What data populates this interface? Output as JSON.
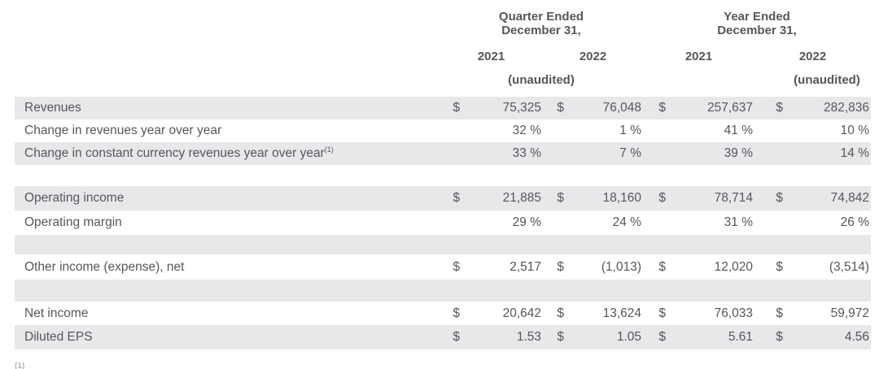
{
  "page": {
    "background_color": "#ffffff",
    "text_color": "#55575a",
    "shaded_row_color": "#e7e8ea"
  },
  "header": {
    "quarter_group": {
      "line1": "Quarter Ended",
      "line2": "December 31,",
      "year_left": "2021",
      "year_right": "2022",
      "unaudited": "(unaudited)"
    },
    "year_group": {
      "line1": "Year Ended",
      "line2": "December 31,",
      "year_left": "2021",
      "year_right": "2022",
      "unaudited": "(unaudited)"
    }
  },
  "rows": [
    {
      "label": "Revenues",
      "cells": [
        "$",
        "75,325",
        "$",
        "76,048",
        "$",
        "257,637",
        "$",
        "282,836"
      ]
    },
    {
      "label": "Change in revenues year over year",
      "cells": [
        "",
        "32 %",
        "",
        "1 %",
        "",
        "41 %",
        "",
        "10 %"
      ]
    },
    {
      "label": "Change in constant currency revenues year over year",
      "sup": "(1)",
      "cells": [
        "",
        "33 %",
        "",
        "7 %",
        "",
        "39 %",
        "",
        "14 %"
      ]
    },
    {
      "label": "Operating income",
      "cells": [
        "$",
        "21,885",
        "$",
        "18,160",
        "$",
        "78,714",
        "$",
        "74,842"
      ]
    },
    {
      "label": "Operating margin",
      "cells": [
        "",
        "29 %",
        "",
        "24 %",
        "",
        "31 %",
        "",
        "26 %"
      ]
    },
    {
      "label": "Other income (expense), net",
      "cells": [
        "$",
        "2,517",
        "$",
        "(1,013)",
        "$",
        "12,020",
        "$",
        "(3,514)"
      ]
    },
    {
      "label": "Net income",
      "cells": [
        "$",
        "20,642",
        "$",
        "13,624",
        "$",
        "76,033",
        "$",
        "59,972"
      ]
    },
    {
      "label": "Diluted EPS",
      "cells": [
        "$",
        "1.53",
        "$",
        "1.05",
        "$",
        "5.61",
        "$",
        "4.56"
      ]
    }
  ],
  "footnote_marker": "(1)"
}
